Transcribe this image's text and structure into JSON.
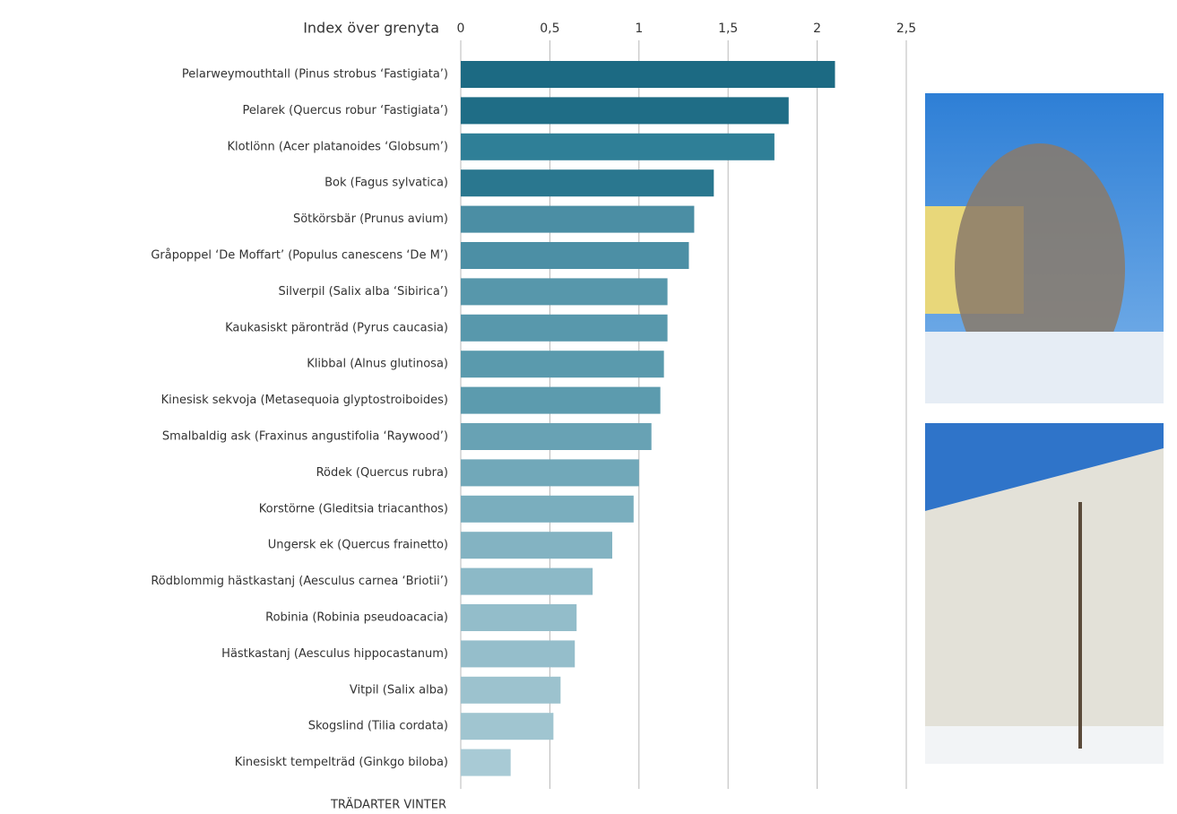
{
  "chart_data": {
    "type": "barh",
    "title": "Index över grenyta",
    "y_label": "TRÄDARTER VINTER",
    "categories": [
      "Pelarweymouthtall (Pinus strobus ‘Fastigiata’)",
      "Pelarek (Quercus robur ‘Fastigiata’)",
      "Klotlönn (Acer platanoides ‘Globsum’)",
      "Bok (Fagus sylvatica)",
      "Sötkörsbär (Prunus avium)",
      "Gråpoppel ‘De Moffart’ (Populus canescens ‘De M’)",
      "Silverpil (Salix alba ‘Sibirica’)",
      "Kaukasiskt päronträd (Pyrus caucasia)",
      "Klibbal (Alnus glutinosa)",
      "Kinesisk sekvoja (Metasequoia glyptostroiboides)",
      "Smalbaldig ask (Fraxinus angustifolia ‘Raywood’)",
      "Rödek (Quercus rubra)",
      "Korstörne (Gleditsia triacanthos)",
      "Ungersk ek (Quercus frainetto)",
      "Rödblommig hästkastanj (Aesculus carnea ‘Briotii’)",
      "Robinia (Robinia pseudoacacia)",
      "Hästkastanj (Aesculus hippocastanum)",
      "Vitpil (Salix alba)",
      "Skogslind (Tilia cordata)",
      "Kinesiskt tempelträd (Ginkgo biloba)"
    ],
    "values": [
      2.1,
      1.84,
      1.76,
      1.42,
      1.31,
      1.28,
      1.16,
      1.16,
      1.14,
      1.12,
      1.07,
      1.0,
      0.97,
      0.85,
      0.74,
      0.65,
      0.64,
      0.56,
      0.52,
      0.28
    ],
    "colors": [
      "#1c6a83",
      "#1f6d86",
      "#2f7f97",
      "#2a778f",
      "#4b8ea4",
      "#4c8fa5",
      "#5797ab",
      "#5898ac",
      "#5a9aad",
      "#5c9bae",
      "#68a2b4",
      "#71a8b9",
      "#7aaebe",
      "#83b3c2",
      "#8cb9c7",
      "#93bdca",
      "#95becb",
      "#9cc2ce",
      "#a0c5d0",
      "#a8cad5"
    ],
    "xlim": [
      0,
      2.5
    ],
    "xticks": [
      0,
      {
        "value": 0.5,
        "label": "0,5"
      },
      1,
      {
        "value": 1.5,
        "label": "1,5"
      },
      2,
      {
        "value": 2.5,
        "label": "2,5"
      }
    ],
    "grid": true
  }
}
